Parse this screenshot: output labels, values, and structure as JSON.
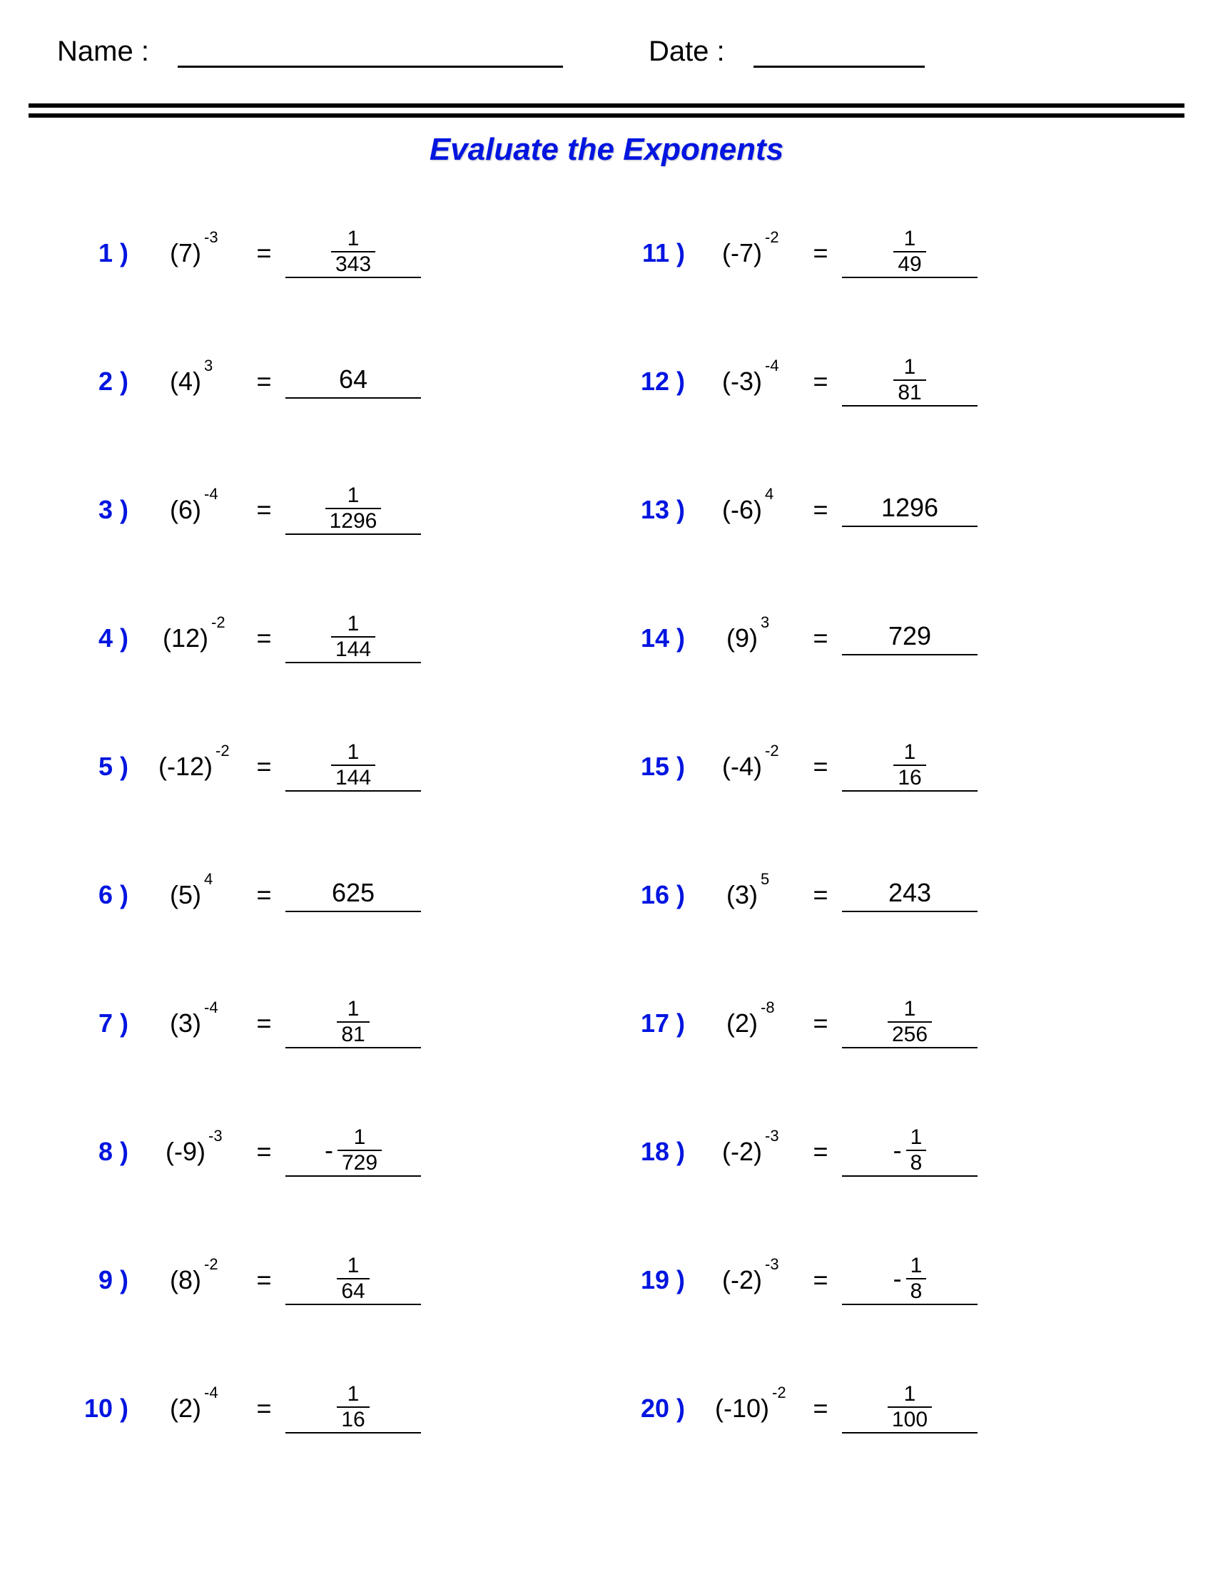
{
  "header": {
    "name_label": "Name :",
    "date_label": "Date :"
  },
  "title": "Evaluate the Exponents",
  "colors": {
    "accent": "#0015e0",
    "text": "#000000",
    "background": "#ffffff"
  },
  "equals": "=",
  "problems": [
    {
      "n": "1 )",
      "base": "(7)",
      "exp": "-3",
      "ans": {
        "type": "frac",
        "sign": "",
        "num": "1",
        "den": "343"
      }
    },
    {
      "n": "2 )",
      "base": "(4)",
      "exp": "3",
      "ans": {
        "type": "int",
        "val": "64"
      }
    },
    {
      "n": "3 )",
      "base": "(6)",
      "exp": "-4",
      "ans": {
        "type": "frac",
        "sign": "",
        "num": "1",
        "den": "1296"
      }
    },
    {
      "n": "4 )",
      "base": "(12)",
      "exp": "-2",
      "ans": {
        "type": "frac",
        "sign": "",
        "num": "1",
        "den": "144"
      }
    },
    {
      "n": "5 )",
      "base": "(-12)",
      "exp": "-2",
      "ans": {
        "type": "frac",
        "sign": "",
        "num": "1",
        "den": "144"
      }
    },
    {
      "n": "6 )",
      "base": "(5)",
      "exp": "4",
      "ans": {
        "type": "int",
        "val": "625"
      }
    },
    {
      "n": "7 )",
      "base": "(3)",
      "exp": "-4",
      "ans": {
        "type": "frac",
        "sign": "",
        "num": "1",
        "den": "81"
      }
    },
    {
      "n": "8 )",
      "base": "(-9)",
      "exp": "-3",
      "ans": {
        "type": "frac",
        "sign": "-",
        "num": "1",
        "den": "729"
      }
    },
    {
      "n": "9 )",
      "base": "(8)",
      "exp": "-2",
      "ans": {
        "type": "frac",
        "sign": "",
        "num": "1",
        "den": "64"
      }
    },
    {
      "n": "10 )",
      "base": "(2)",
      "exp": "-4",
      "ans": {
        "type": "frac",
        "sign": "",
        "num": "1",
        "den": "16"
      }
    },
    {
      "n": "11 )",
      "base": "(-7)",
      "exp": "-2",
      "ans": {
        "type": "frac",
        "sign": "",
        "num": "1",
        "den": "49"
      }
    },
    {
      "n": "12 )",
      "base": "(-3)",
      "exp": "-4",
      "ans": {
        "type": "frac",
        "sign": "",
        "num": "1",
        "den": "81"
      }
    },
    {
      "n": "13 )",
      "base": "(-6)",
      "exp": "4",
      "ans": {
        "type": "int",
        "val": "1296"
      }
    },
    {
      "n": "14 )",
      "base": "(9)",
      "exp": "3",
      "ans": {
        "type": "int",
        "val": "729"
      }
    },
    {
      "n": "15 )",
      "base": "(-4)",
      "exp": "-2",
      "ans": {
        "type": "frac",
        "sign": "",
        "num": "1",
        "den": "16"
      }
    },
    {
      "n": "16 )",
      "base": "(3)",
      "exp": "5",
      "ans": {
        "type": "int",
        "val": "243"
      }
    },
    {
      "n": "17 )",
      "base": "(2)",
      "exp": "-8",
      "ans": {
        "type": "frac",
        "sign": "",
        "num": "1",
        "den": "256"
      }
    },
    {
      "n": "18 )",
      "base": "(-2)",
      "exp": "-3",
      "ans": {
        "type": "frac",
        "sign": "-",
        "num": "1",
        "den": "8"
      }
    },
    {
      "n": "19 )",
      "base": "(-2)",
      "exp": "-3",
      "ans": {
        "type": "frac",
        "sign": "-",
        "num": "1",
        "den": "8"
      }
    },
    {
      "n": "20 )",
      "base": "(-10)",
      "exp": "-2",
      "ans": {
        "type": "frac",
        "sign": "",
        "num": "1",
        "den": "100"
      }
    }
  ]
}
